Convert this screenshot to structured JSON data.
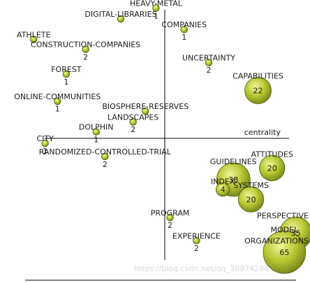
{
  "chart_data": {
    "type": "scatter",
    "title": "",
    "xlabel": "centrality",
    "ylabel": "",
    "x_axis_label": "centrality",
    "grid": false,
    "point_color": "#b8c832",
    "point_edge_color": "#4c5a10",
    "points": [
      {
        "label": "HEAVY-METAL",
        "value": "1",
        "x": -0.1,
        "y": 1.58
      },
      {
        "label": "DIGITAL-LIBRARIES",
        "value": "",
        "x": -0.5,
        "y": 1.45
      },
      {
        "label": "COMPANIES",
        "value": "1",
        "x": 0.22,
        "y": 1.32
      },
      {
        "label": "ATHLETE",
        "value": "",
        "x": -1.49,
        "y": 1.2
      },
      {
        "label": "CONSTRUCTION-COMPANIES",
        "value": "2",
        "x": -0.9,
        "y": 1.08
      },
      {
        "label": "UNCERTAINTY",
        "value": "2",
        "x": 0.5,
        "y": 0.92
      },
      {
        "label": "FOREST",
        "value": "1",
        "x": -1.12,
        "y": 0.78
      },
      {
        "label": "CAPABILITIES",
        "value": "22",
        "x": 1.06,
        "y": 0.58
      },
      {
        "label": "ONLINE-COMMUNITIES",
        "value": "1",
        "x": -1.22,
        "y": 0.45
      },
      {
        "label": "BIOSPHERE-RESERVES",
        "value": "",
        "x": -0.22,
        "y": 0.33
      },
      {
        "label": "LANDSCAPES",
        "value": "2",
        "x": -0.36,
        "y": 0.2
      },
      {
        "label": "DOLPHIN",
        "value": "1",
        "x": -0.78,
        "y": 0.08
      },
      {
        "label": "CITY",
        "value": "1",
        "x": -1.36,
        "y": -0.06
      },
      {
        "label": "RANDOMIZED-CONTROLLED-TRIAL",
        "value": "2",
        "x": -0.68,
        "y": -0.22
      },
      {
        "label": "ATTITUDES",
        "value": "20",
        "x": 1.22,
        "y": -0.36
      },
      {
        "label": "GUIDELINES",
        "value": "38",
        "x": 0.78,
        "y": -0.5
      },
      {
        "label": "INDEX",
        "value": "4",
        "x": 0.66,
        "y": -0.62
      },
      {
        "label": "SYSTEMS",
        "value": "20",
        "x": 0.98,
        "y": -0.74
      },
      {
        "label": "PROGRAM",
        "value": "2",
        "x": 0.06,
        "y": -0.96
      },
      {
        "label": "PERSPECTIVE",
        "value": "35",
        "x": 1.49,
        "y": -1.15
      },
      {
        "label": "EXPERIENCE",
        "value": "2",
        "x": 0.36,
        "y": -1.24
      },
      {
        "label": "ORGANIZATIONS",
        "value": "",
        "x": 1.32,
        "y": -1.3
      },
      {
        "label": "MODEL",
        "value": "65",
        "x": 1.36,
        "y": -1.38
      }
    ]
  },
  "watermark": "https://blog.csdn.net/qq_39974284"
}
